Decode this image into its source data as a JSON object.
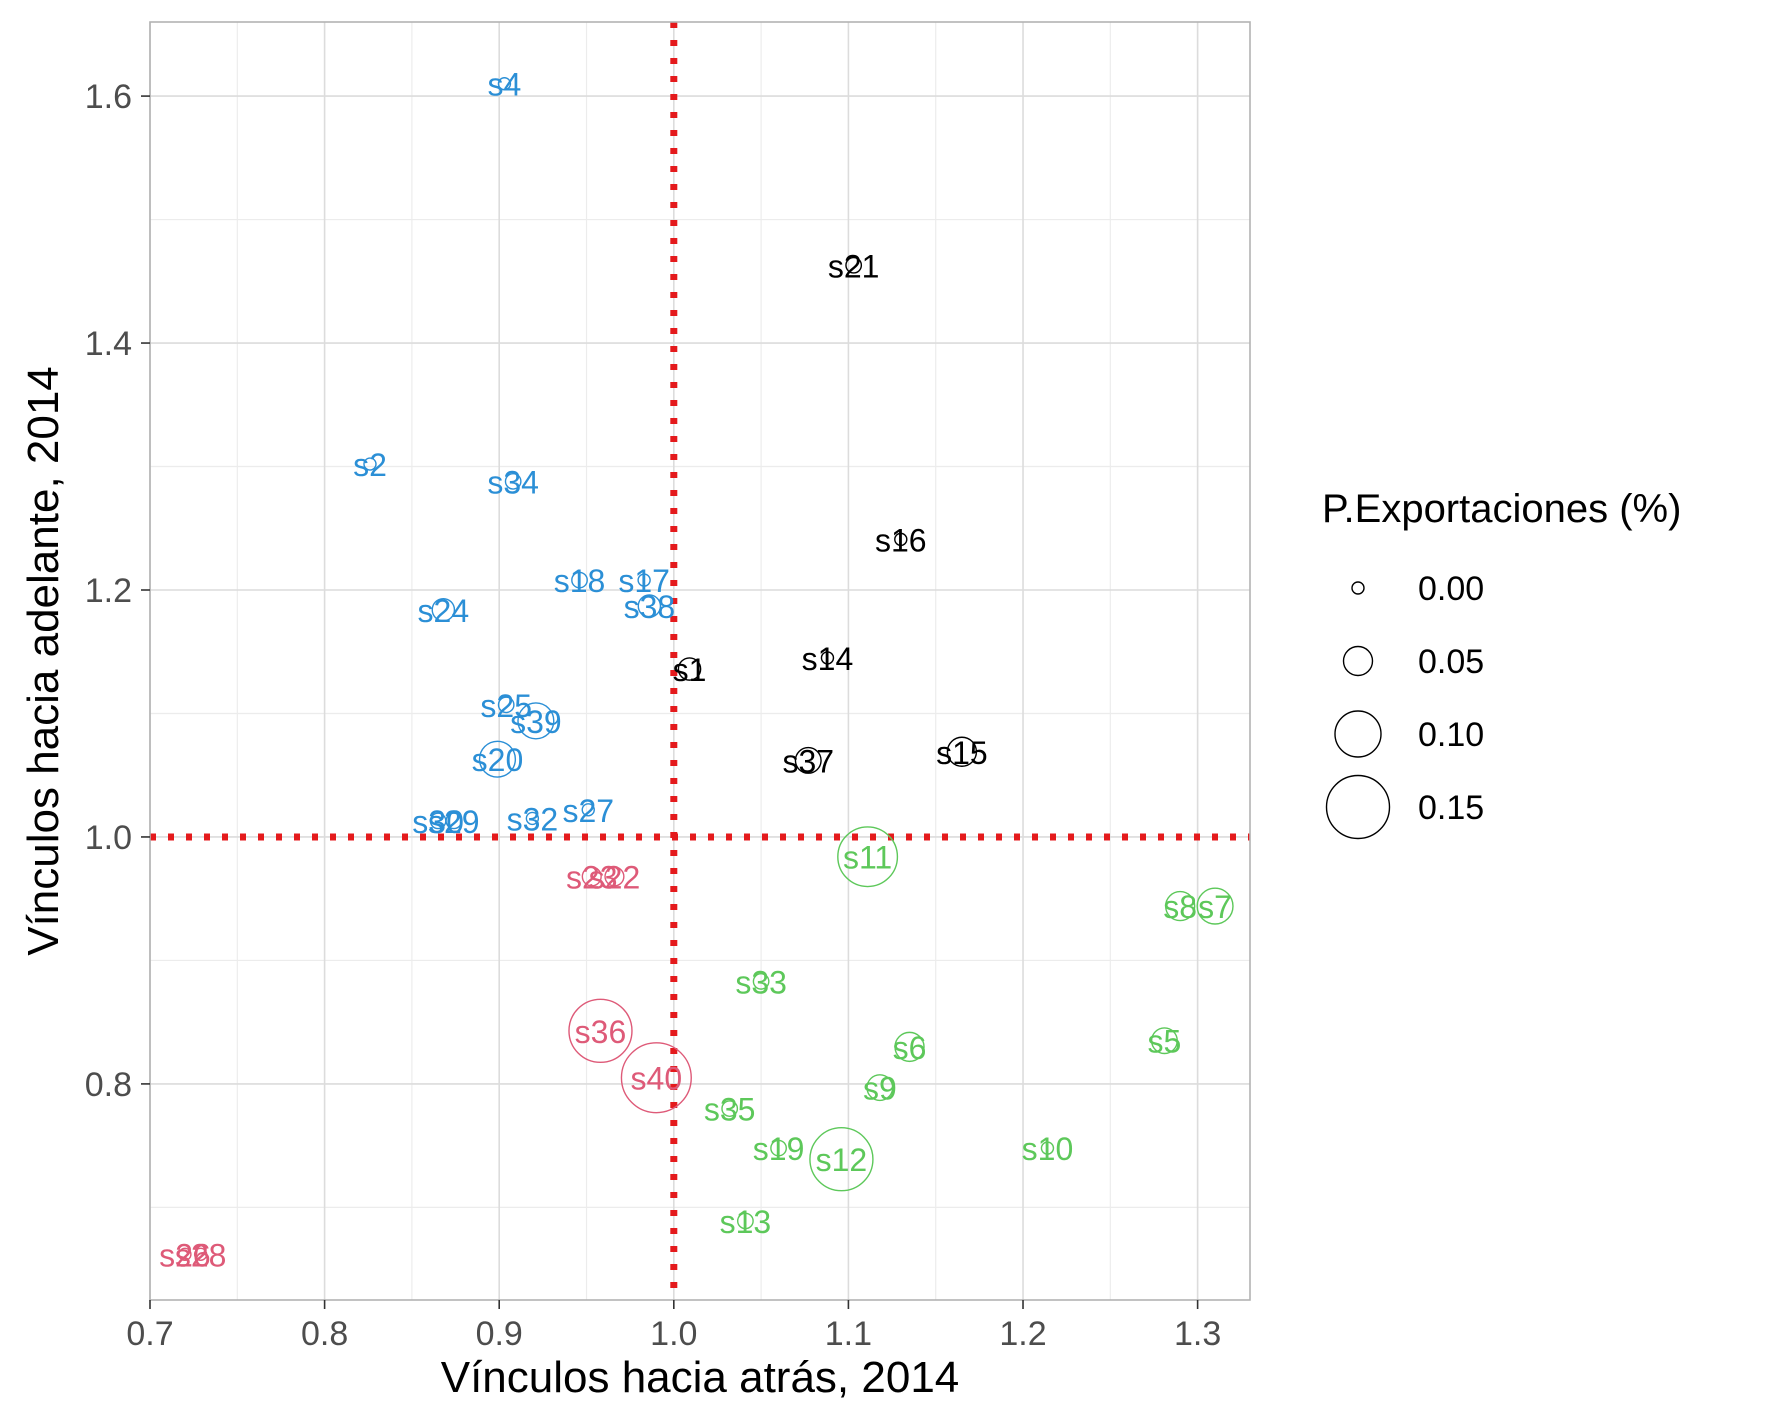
{
  "chart_data": {
    "type": "scatter",
    "title": "",
    "xlabel": "Vínculos hacia atrás, 2014",
    "ylabel": "Vínculos hacia adelante, 2014",
    "xlim": [
      0.7,
      1.33
    ],
    "ylim": [
      0.625,
      1.66
    ],
    "x_ticks": [
      0.7,
      0.8,
      0.9,
      1.0,
      1.1,
      1.2,
      1.3
    ],
    "x_tick_labels": [
      "0.7",
      "0.8",
      "0.9",
      "1.0",
      "1.1",
      "1.2",
      "1.3"
    ],
    "y_ticks": [
      0.8,
      1.0,
      1.2,
      1.4,
      1.6
    ],
    "y_tick_labels": [
      "0.8",
      "1.0",
      "1.2",
      "1.4",
      "1.6"
    ],
    "grid": true,
    "reference_lines": {
      "x": 1.0,
      "y": 1.0,
      "color": "#e41a1c",
      "style": "dotted"
    },
    "legend": {
      "title": "P.Exportaciones (%)",
      "placement": "right",
      "entries": [
        {
          "label": "0.00",
          "value": 0.0
        },
        {
          "label": "0.05",
          "value": 0.05
        },
        {
          "label": "0.10",
          "value": 0.1
        },
        {
          "label": "0.15",
          "value": 0.15
        }
      ]
    },
    "groups": [
      {
        "color": "#2b8fd6"
      },
      {
        "color": "#000000"
      },
      {
        "color": "#de5a78"
      },
      {
        "color": "#5dc85a"
      }
    ],
    "points": [
      {
        "label": "s4",
        "x": 0.903,
        "y": 1.61,
        "size": 0.0,
        "group": 0
      },
      {
        "label": "s2",
        "x": 0.826,
        "y": 1.302,
        "size": 0.0,
        "group": 0
      },
      {
        "label": "s34",
        "x": 0.908,
        "y": 1.288,
        "size": 0.01,
        "group": 0
      },
      {
        "label": "s18",
        "x": 0.946,
        "y": 1.208,
        "size": 0.01,
        "group": 0
      },
      {
        "label": "s17",
        "x": 0.983,
        "y": 1.208,
        "size": 0.0,
        "group": 0
      },
      {
        "label": "s24",
        "x": 0.868,
        "y": 1.184,
        "size": 0.03,
        "group": 0
      },
      {
        "label": "s38",
        "x": 0.986,
        "y": 1.187,
        "size": 0.03,
        "group": 0
      },
      {
        "label": "s25",
        "x": 0.904,
        "y": 1.107,
        "size": 0.01,
        "group": 0
      },
      {
        "label": "s39",
        "x": 0.921,
        "y": 1.094,
        "size": 0.07,
        "group": 0
      },
      {
        "label": "s20",
        "x": 0.899,
        "y": 1.063,
        "size": 0.07,
        "group": 0
      },
      {
        "label": "s27",
        "x": 0.951,
        "y": 1.022,
        "size": 0.0,
        "group": 0
      },
      {
        "label": "s32",
        "x": 0.919,
        "y": 1.015,
        "size": 0.0,
        "group": 0
      },
      {
        "label": "s30",
        "x": 0.865,
        "y": 1.013,
        "size": 0.01,
        "group": 0
      },
      {
        "label": "s29",
        "x": 0.874,
        "y": 1.013,
        "size": 0.01,
        "group": 0
      },
      {
        "label": "s21",
        "x": 1.103,
        "y": 1.463,
        "size": 0.01,
        "group": 1
      },
      {
        "label": "s16",
        "x": 1.13,
        "y": 1.241,
        "size": 0.0,
        "group": 1
      },
      {
        "label": "s14",
        "x": 1.088,
        "y": 1.145,
        "size": 0.0,
        "group": 1
      },
      {
        "label": "s1",
        "x": 1.009,
        "y": 1.136,
        "size": 0.03,
        "group": 1
      },
      {
        "label": "s37",
        "x": 1.077,
        "y": 1.062,
        "size": 0.04,
        "group": 1
      },
      {
        "label": "s15",
        "x": 1.165,
        "y": 1.069,
        "size": 0.05,
        "group": 1
      },
      {
        "label": "s23",
        "x": 0.953,
        "y": 0.968,
        "size": 0.02,
        "group": 2
      },
      {
        "label": "s22",
        "x": 0.966,
        "y": 0.968,
        "size": 0.02,
        "group": 2
      },
      {
        "label": "s36",
        "x": 0.958,
        "y": 0.843,
        "size": 0.15,
        "group": 2
      },
      {
        "label": "s40",
        "x": 0.99,
        "y": 0.805,
        "size": 0.17,
        "group": 2
      },
      {
        "label": "s26",
        "x": 0.72,
        "y": 0.662,
        "size": 0.0,
        "group": 2
      },
      {
        "label": "s28",
        "x": 0.729,
        "y": 0.662,
        "size": 0.0,
        "group": 2
      },
      {
        "label": "s11",
        "x": 1.111,
        "y": 0.984,
        "size": 0.14,
        "group": 3
      },
      {
        "label": "s8",
        "x": 1.29,
        "y": 0.944,
        "size": 0.05,
        "group": 3
      },
      {
        "label": "s7",
        "x": 1.31,
        "y": 0.944,
        "size": 0.07,
        "group": 3
      },
      {
        "label": "s33",
        "x": 1.05,
        "y": 0.883,
        "size": 0.01,
        "group": 3
      },
      {
        "label": "s5",
        "x": 1.281,
        "y": 0.835,
        "size": 0.04,
        "group": 3
      },
      {
        "label": "s6",
        "x": 1.135,
        "y": 0.83,
        "size": 0.05,
        "group": 3
      },
      {
        "label": "s9",
        "x": 1.118,
        "y": 0.797,
        "size": 0.04,
        "group": 3
      },
      {
        "label": "s35",
        "x": 1.032,
        "y": 0.78,
        "size": 0.01,
        "group": 3
      },
      {
        "label": "s19",
        "x": 1.06,
        "y": 0.748,
        "size": 0.01,
        "group": 3
      },
      {
        "label": "s12",
        "x": 1.096,
        "y": 0.739,
        "size": 0.15,
        "group": 3
      },
      {
        "label": "s10",
        "x": 1.214,
        "y": 0.748,
        "size": 0.0,
        "group": 3
      },
      {
        "label": "s13",
        "x": 1.041,
        "y": 0.689,
        "size": 0.01,
        "group": 3
      }
    ]
  }
}
